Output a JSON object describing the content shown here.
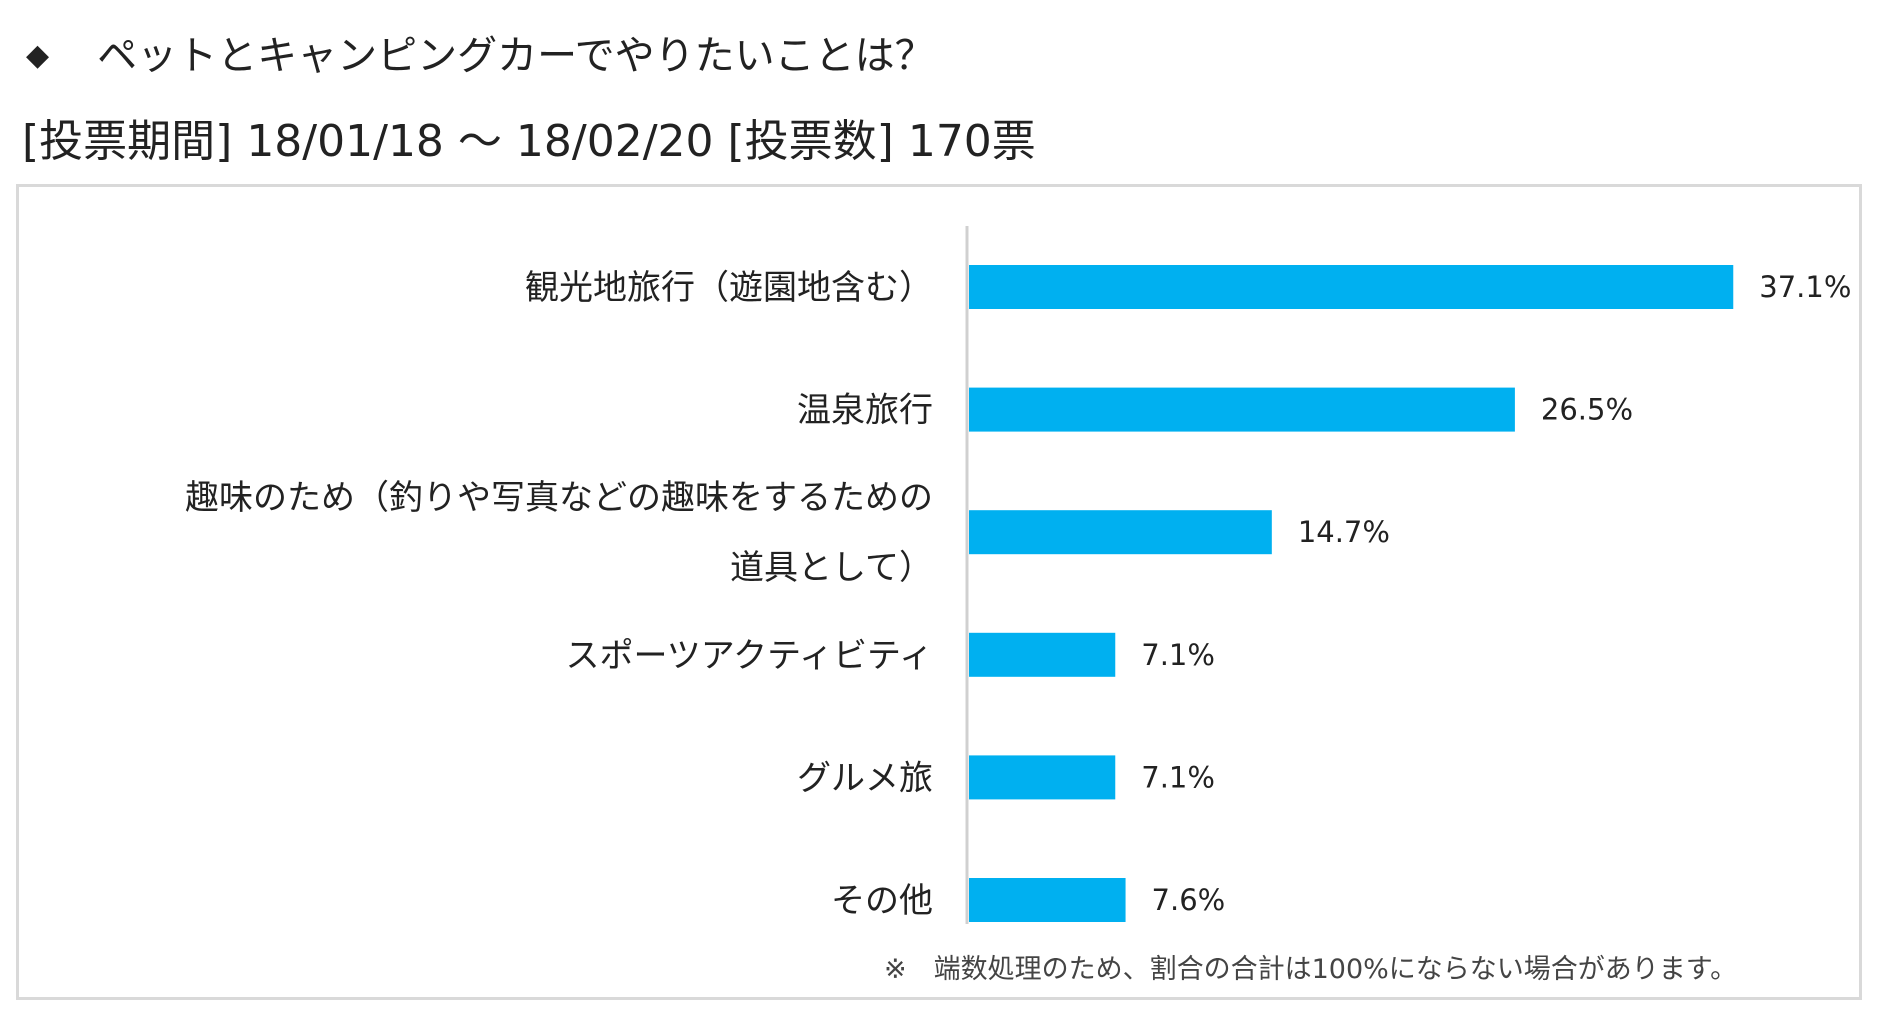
{
  "header": {
    "bullet": "◆",
    "title": "ペットとキャンピングカーでやりたいことは？",
    "period": "[投票期間] 18/01/18 ～ 18/02/20 [投票数] 170票"
  },
  "colors": {
    "bar": "#00b0f0",
    "axis": "#d0d0d0",
    "frame": "#d9d9d9"
  },
  "chart_data": {
    "type": "bar",
    "orientation": "horizontal",
    "categories": [
      [
        "観光地旅行（遊園地含む）"
      ],
      [
        "温泉旅行"
      ],
      [
        "趣味のため（釣りや写真などの趣味をするための",
        "道具として）"
      ],
      [
        "スポーツアクティビティ"
      ],
      [
        "グルメ旅"
      ],
      [
        "その他"
      ]
    ],
    "values": [
      37.1,
      26.5,
      14.7,
      7.1,
      7.1,
      7.6
    ],
    "value_labels": [
      "37.1%",
      "26.5%",
      "14.7%",
      "7.1%",
      "7.1%",
      "7.6%"
    ],
    "unit": "%",
    "xlim": [
      0,
      40
    ],
    "grid": false,
    "legend": "none"
  },
  "footnote": "※　端数処理のため、割合の合計は100%にならない場合があります。"
}
